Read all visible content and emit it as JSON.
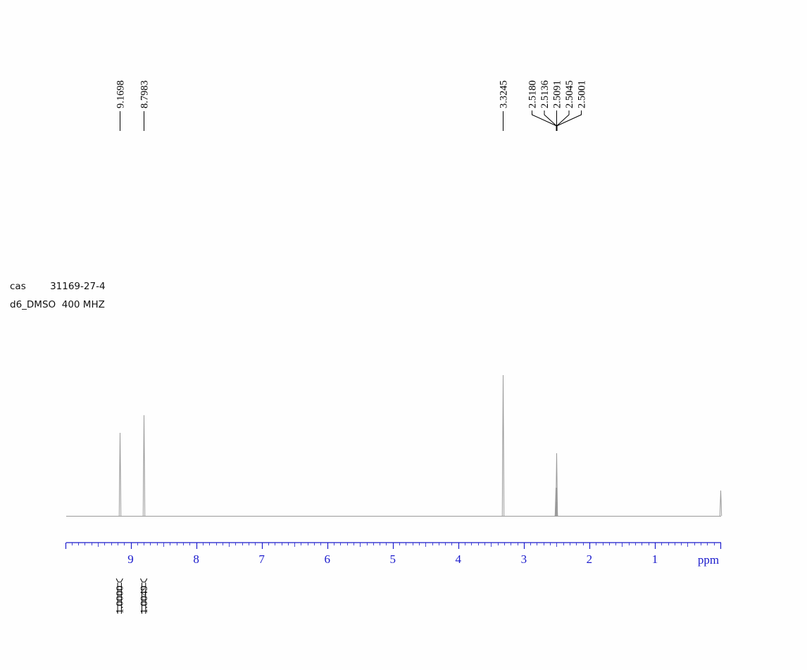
{
  "header": {
    "cas_label": "cas",
    "cas_number": "31169-27-4",
    "solvent": "d6_DMSO",
    "frequency": "400 MHZ"
  },
  "colors": {
    "spectrum": "#9a9a9a",
    "axis": "#1a1acc",
    "labels": "#000000"
  },
  "chart_data": {
    "type": "line",
    "title": "",
    "xlabel": "ppm",
    "ylabel": "",
    "x_reversed": true,
    "xlim": [
      10.0,
      0.0
    ],
    "x_ticks": [
      9,
      8,
      7,
      6,
      5,
      4,
      3,
      2,
      1
    ],
    "minor_tick_step": 0.1,
    "grid": false,
    "peaks": [
      {
        "ppm": 9.1698,
        "relative_height": 0.59
      },
      {
        "ppm": 8.7983,
        "relative_height": 0.715
      },
      {
        "ppm": 3.3245,
        "relative_height": 1.0
      },
      {
        "ppm": 2.518,
        "relative_height": 0.1
      },
      {
        "ppm": 2.5136,
        "relative_height": 0.2
      },
      {
        "ppm": 2.5091,
        "relative_height": 0.445
      },
      {
        "ppm": 2.5045,
        "relative_height": 0.2
      },
      {
        "ppm": 2.5001,
        "relative_height": 0.1
      },
      {
        "ppm": 0.0,
        "relative_height": 0.18
      }
    ],
    "peak_labels": [
      {
        "ppm": 9.1698,
        "text": "9.1698"
      },
      {
        "ppm": 8.7983,
        "text": "8.7983"
      },
      {
        "ppm": 3.3245,
        "text": "3.3245"
      },
      {
        "ppm": 2.518,
        "text": "2.5180"
      },
      {
        "ppm": 2.5136,
        "text": "2.5136"
      },
      {
        "ppm": 2.5091,
        "text": "2.5091"
      },
      {
        "ppm": 2.5045,
        "text": "2.5045"
      },
      {
        "ppm": 2.5001,
        "text": "2.5001"
      }
    ],
    "integrals": [
      {
        "from": 9.22,
        "to": 9.12,
        "value": "1.0000"
      },
      {
        "from": 8.85,
        "to": 8.75,
        "value": "1.0049"
      }
    ]
  }
}
